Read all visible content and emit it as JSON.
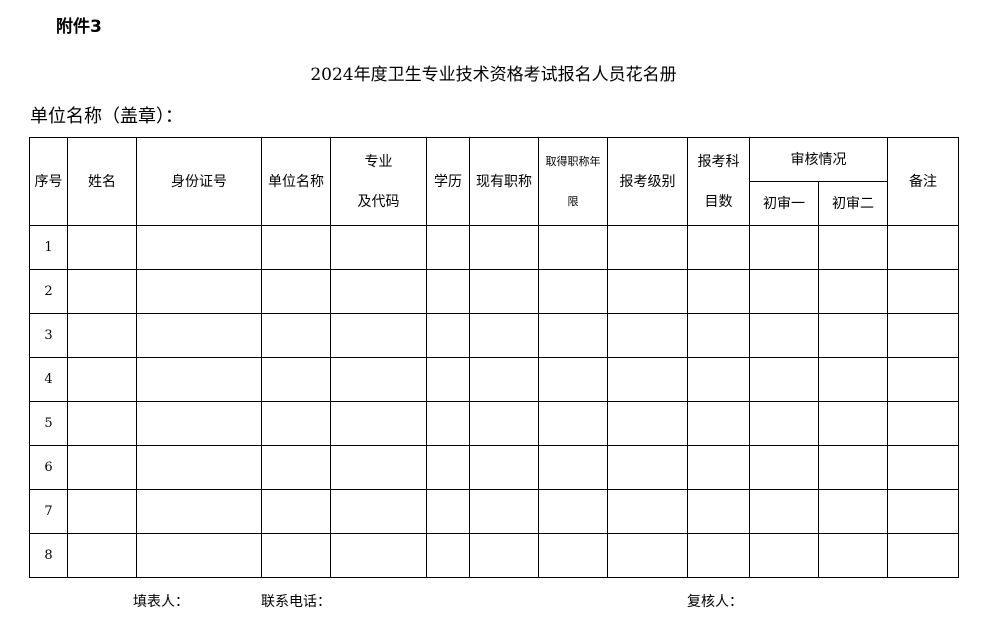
{
  "attachment": "附件3",
  "title": "2024年度卫生专业技术资格考试报名人员花名册",
  "unit_label": "单位名称（盖章）：",
  "headers": {
    "seq": "序号",
    "name": "姓名",
    "id": "身份证号",
    "unit": "单位名称",
    "major1": "专业",
    "major2": "及代码",
    "edu": "学历",
    "title": "现有职称",
    "years1": "取得职称年",
    "years2": "限",
    "level": "报考级别",
    "subjects1": "报考科",
    "subjects2": "目数",
    "review": "审核情况",
    "review1": "初审一",
    "review2": "初审二",
    "remark": "备注"
  },
  "rows": [
    "1",
    "2",
    "3",
    "4",
    "5",
    "6",
    "7",
    "8"
  ],
  "footer": {
    "filler": "填表人：",
    "phone": "联系电话：",
    "checker": "复核人："
  }
}
